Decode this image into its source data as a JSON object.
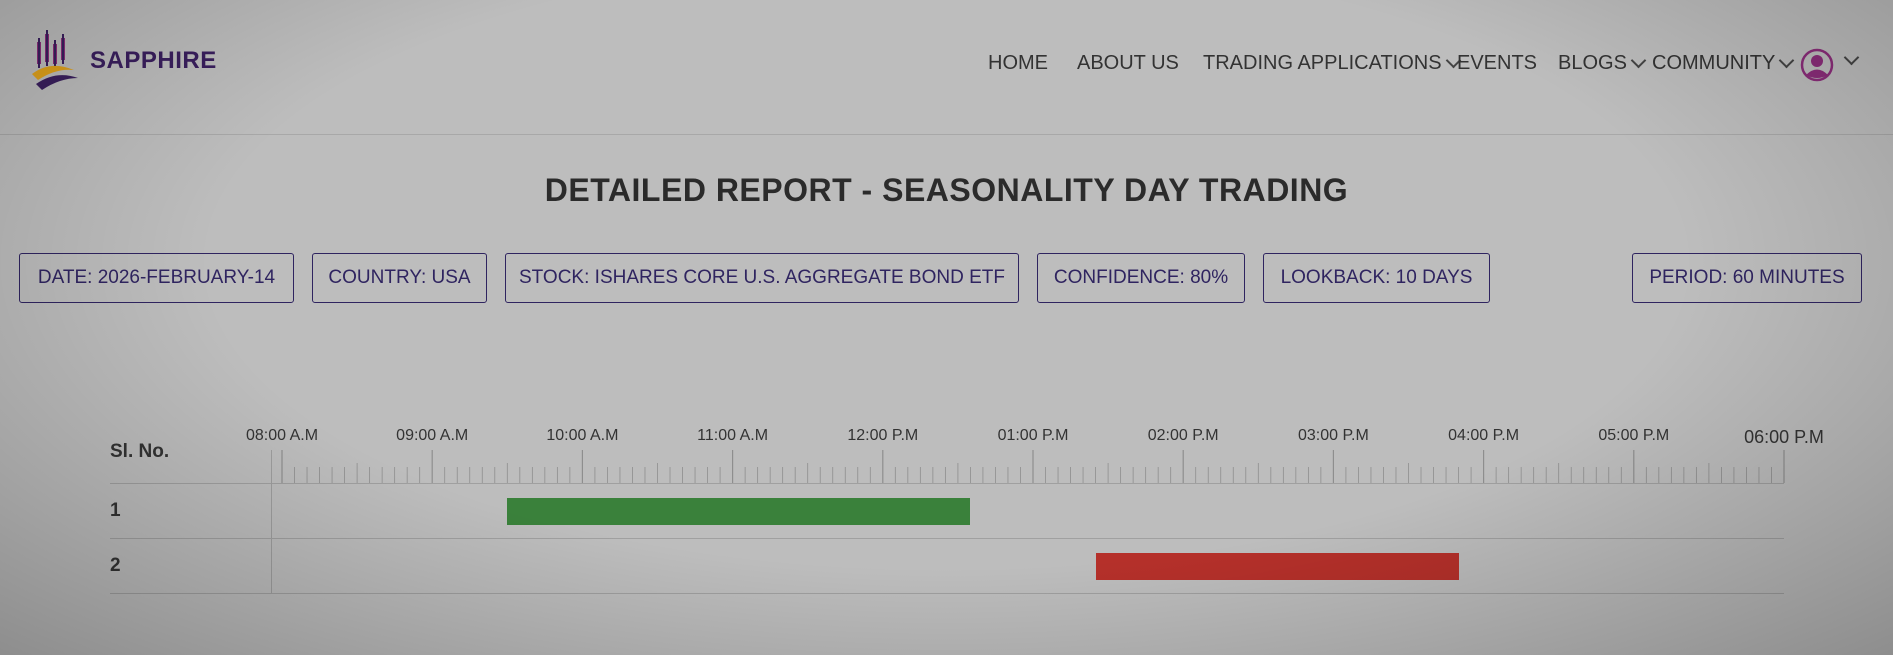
{
  "brand": {
    "name": "SAPPHIRE"
  },
  "nav": {
    "items": [
      {
        "label": "HOME",
        "has_dropdown": false
      },
      {
        "label": "ABOUT US",
        "has_dropdown": false
      },
      {
        "label": "TRADING APPLICATIONS",
        "has_dropdown": true
      },
      {
        "label": "EVENTS",
        "has_dropdown": false
      },
      {
        "label": "BLOGS",
        "has_dropdown": true
      },
      {
        "label": "COMMUNITY",
        "has_dropdown": true
      }
    ],
    "user_icon": "user-circle-icon"
  },
  "page_title": "DETAILED REPORT - SEASONALITY DAY TRADING",
  "filters": {
    "date": "DATE: 2026-FEBRUARY-14",
    "country": "COUNTRY: USA",
    "stock": "STOCK: ISHARES CORE U.S. AGGREGATE BOND ETF",
    "confidence": "CONFIDENCE: 80%",
    "lookback": "LOOKBACK: 10 DAYS",
    "period": "PERIOD: 60 MINUTES"
  },
  "colors": {
    "accent": "#2f2460",
    "brand": "#3a1f5e",
    "buy": "#3a813b",
    "sell": "#b5302a"
  },
  "timeline": {
    "row_header": "Sl. No.",
    "ticks": [
      "08:00 A.M",
      "09:00 A.M",
      "10:00 A.M",
      "11:00 A.M",
      "12:00 P.M",
      "01:00 P.M",
      "02:00 P.M",
      "03:00 P.M",
      "04:00 P.M",
      "05:00 P.M",
      "06:00 P.M"
    ],
    "start_hour": 8,
    "end_hour": 18,
    "rows": [
      {
        "number": "1",
        "start": "09:30 A.M",
        "end": "12:35 P.M",
        "color": "#3a813b"
      },
      {
        "number": "2",
        "start": "01:25 P.M",
        "end": "03:50 P.M",
        "color": "#b5302a"
      }
    ]
  }
}
